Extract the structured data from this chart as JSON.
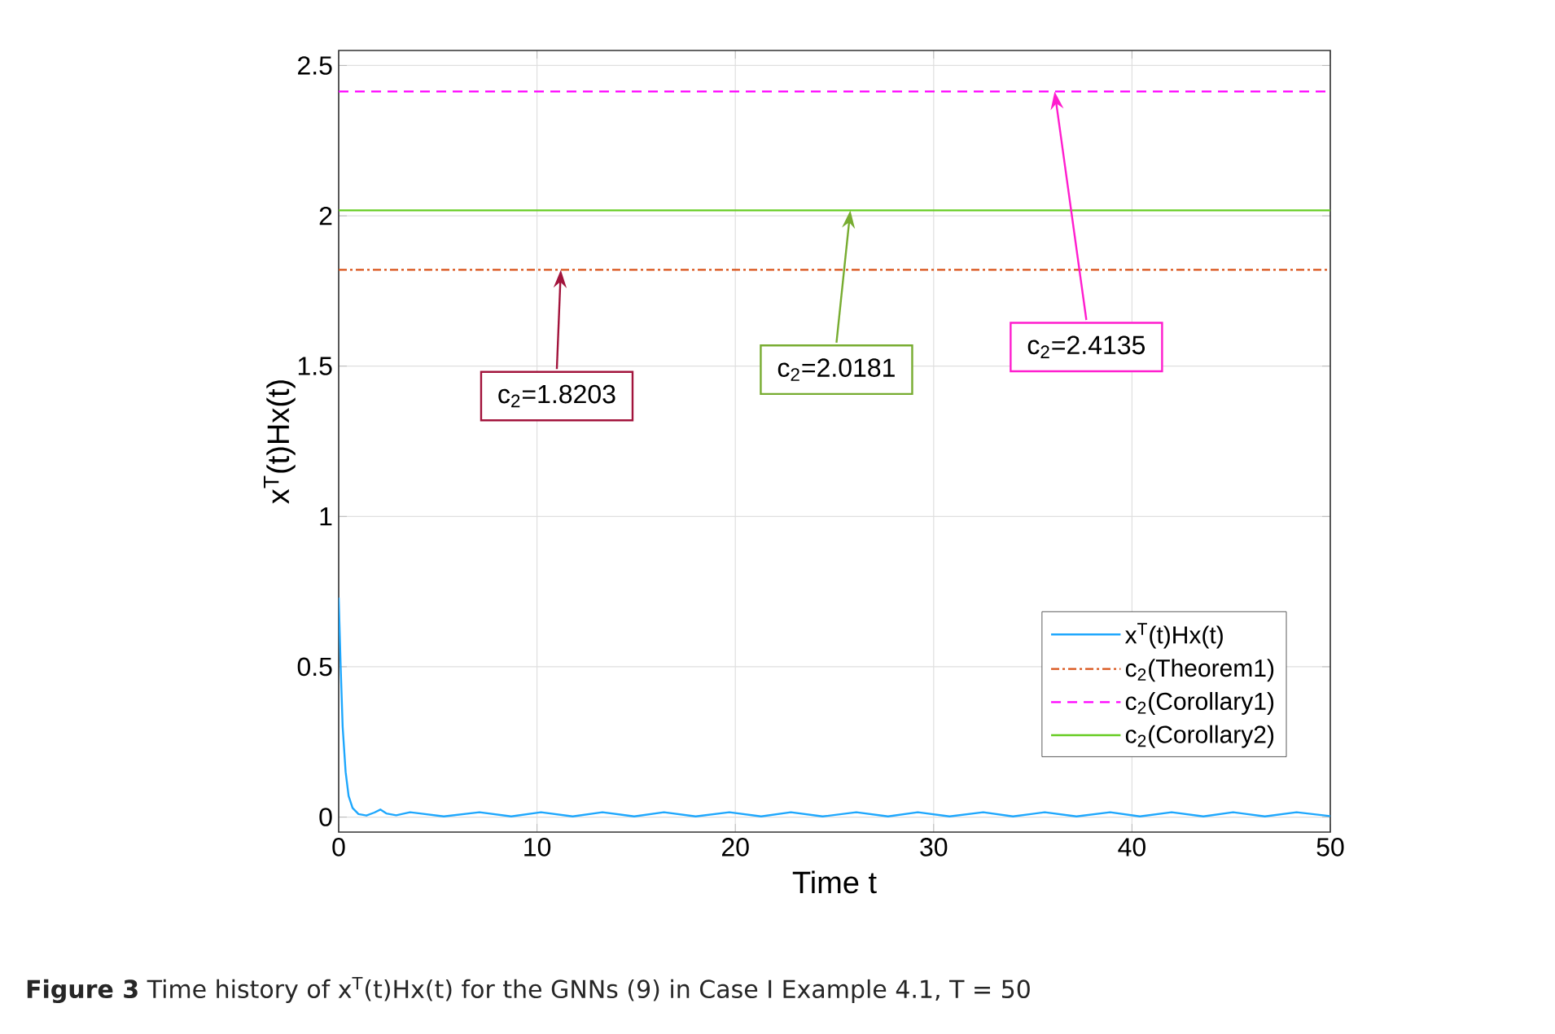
{
  "chart_data": {
    "type": "line",
    "xlabel": "Time t",
    "ylabel": "x$^{T}$(t)Hx(t)",
    "xlim": [
      0,
      50
    ],
    "ylim": [
      -0.05,
      2.55
    ],
    "xticks": [
      0,
      10,
      20,
      30,
      40,
      50
    ],
    "yticks": [
      0,
      0.5,
      1,
      1.5,
      2,
      2.5
    ],
    "grid": true,
    "legend": "bottom right",
    "series": [
      {
        "name": "x$^{T}$(t)Hx(t)",
        "color": "#1ea7fd",
        "line_style": "solid",
        "x": [
          0,
          0.1,
          0.2,
          0.35,
          0.5,
          0.7,
          1.0,
          1.4,
          1.8,
          2.1,
          2.4,
          2.9,
          3.6,
          5.3,
          7.1,
          8.7,
          10.2,
          11.8,
          13.3,
          14.9,
          16.4,
          18.0,
          19.7,
          21.3,
          22.8,
          24.4,
          26.1,
          27.7,
          29.2,
          30.8,
          32.5,
          34.0,
          35.6,
          37.2,
          38.9,
          40.4,
          42.0,
          43.6,
          45.1,
          46.7,
          48.3,
          50
        ],
        "values": [
          0.73,
          0.5,
          0.3,
          0.15,
          0.07,
          0.03,
          0.01,
          0.005,
          0.015,
          0.025,
          0.012,
          0.006,
          0.016,
          0.002,
          0.016,
          0.002,
          0.016,
          0.002,
          0.016,
          0.002,
          0.016,
          0.002,
          0.016,
          0.002,
          0.016,
          0.002,
          0.016,
          0.002,
          0.016,
          0.002,
          0.016,
          0.002,
          0.016,
          0.002,
          0.016,
          0.002,
          0.016,
          0.002,
          0.016,
          0.002,
          0.016,
          0.003
        ]
      },
      {
        "name": "c$_{2}$(Theorem1)",
        "color": "#d95319",
        "line_style": "dashdot",
        "x": [
          0,
          50
        ],
        "values": [
          1.8203,
          1.8203
        ]
      },
      {
        "name": "c$_{2}$(Corollary1)",
        "color": "#ff00ff",
        "line_style": "dashed",
        "x": [
          0,
          50
        ],
        "values": [
          2.4135,
          2.4135
        ]
      },
      {
        "name": "c$_{2}$(Corollary2)",
        "color": "#66cc22",
        "line_style": "solid",
        "x": [
          0,
          50
        ],
        "values": [
          2.0181,
          2.0181
        ]
      }
    ],
    "annotations": [
      {
        "text": "c$_{2}$=1.8203",
        "x": 11.2,
        "y": 1.8203
      },
      {
        "text": "c$_{2}$=2.0181",
        "x": 25.8,
        "y": 2.0181
      },
      {
        "text": "c$_{2}$=2.4135",
        "x": 36.1,
        "y": 2.4135
      },
      "**Figure 3**  Time history of x$^{T}$(t)Hx(t) for the GNNs (9) in Case I Example 4.1, T = 50"
    ]
  }
}
